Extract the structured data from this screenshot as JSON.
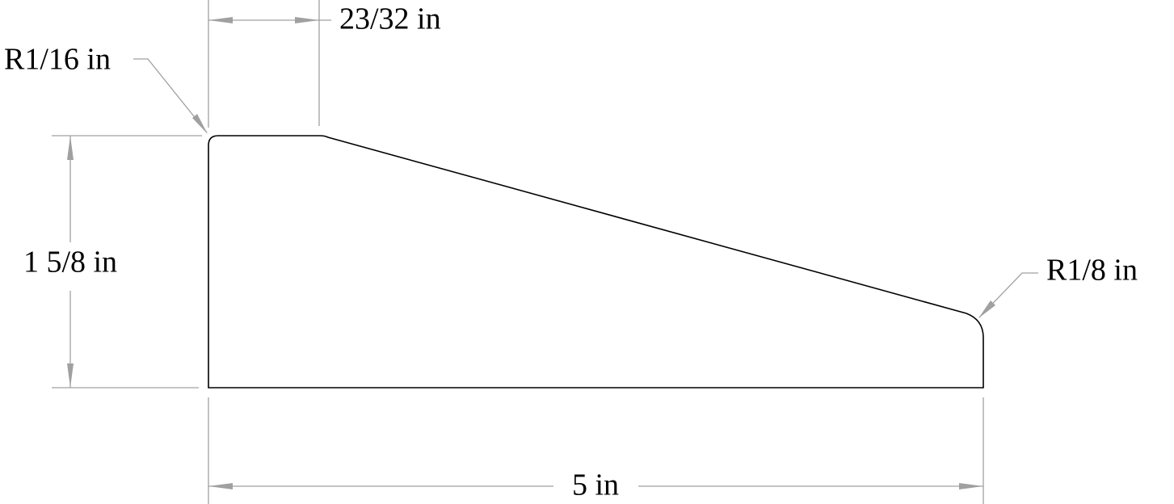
{
  "dimensions": {
    "top_width": "23/32 in",
    "top_radius": "R1/16 in",
    "height": "1 5/8 in",
    "end_radius": "R1/8 in",
    "length": "5 in"
  }
}
